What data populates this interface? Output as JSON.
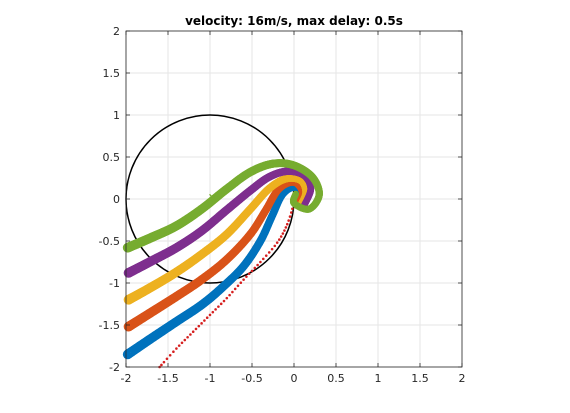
{
  "chart_data": {
    "type": "scatter",
    "title": "velocity: 16m/s, max delay: 0.5s",
    "xlabel": "",
    "ylabel": "",
    "xlim": [
      -2,
      2
    ],
    "ylim": [
      -2,
      2
    ],
    "xticks": [
      -2,
      -1.5,
      -1,
      -0.5,
      0,
      0.5,
      1,
      1.5,
      2
    ],
    "yticks": [
      -2,
      -1.5,
      -1,
      -0.5,
      0,
      0.5,
      1,
      1.5,
      2
    ],
    "xtick_labels": [
      "-2",
      "-1.5",
      "-1",
      "-0.5",
      "0",
      "0.5",
      "1",
      "1.5",
      "2"
    ],
    "ytick_labels": [
      "-2",
      "-1.5",
      "-1",
      "-0.5",
      "0",
      "0.5",
      "1",
      "1.5",
      "2"
    ],
    "grid": true,
    "circle": {
      "center": [
        -1,
        0
      ],
      "radius": 1,
      "color": "#000000"
    },
    "series": [
      {
        "name": "red-dots",
        "color": "#d62020",
        "marker": "dot",
        "points": [
          [
            -1.6,
            -2.0
          ],
          [
            -1.4,
            -1.78
          ],
          [
            -1.2,
            -1.58
          ],
          [
            -1.0,
            -1.38
          ],
          [
            -0.8,
            -1.18
          ],
          [
            -0.6,
            -0.96
          ],
          [
            -0.4,
            -0.75
          ],
          [
            -0.2,
            -0.52
          ],
          [
            -0.08,
            -0.3
          ],
          [
            0.0,
            -0.05
          ]
        ]
      },
      {
        "name": "blue",
        "color": "#0072bd",
        "marker": "circle",
        "points": [
          [
            -1.98,
            -1.85
          ],
          [
            -1.7,
            -1.66
          ],
          [
            -1.4,
            -1.46
          ],
          [
            -1.1,
            -1.26
          ],
          [
            -0.85,
            -1.05
          ],
          [
            -0.6,
            -0.8
          ],
          [
            -0.4,
            -0.5
          ],
          [
            -0.26,
            -0.2
          ],
          [
            -0.14,
            0.05
          ],
          [
            0.0,
            0.14
          ],
          [
            0.08,
            0.04
          ],
          [
            0.04,
            -0.06
          ]
        ]
      },
      {
        "name": "orange",
        "color": "#d95319",
        "marker": "circle",
        "points": [
          [
            -1.97,
            -1.52
          ],
          [
            -1.7,
            -1.35
          ],
          [
            -1.4,
            -1.16
          ],
          [
            -1.1,
            -0.96
          ],
          [
            -0.8,
            -0.72
          ],
          [
            -0.52,
            -0.42
          ],
          [
            -0.34,
            -0.14
          ],
          [
            -0.18,
            0.12
          ],
          [
            0.0,
            0.2
          ],
          [
            0.1,
            0.08
          ],
          [
            0.05,
            -0.06
          ]
        ]
      },
      {
        "name": "yellow",
        "color": "#edb120",
        "marker": "circle",
        "points": [
          [
            -1.97,
            -1.2
          ],
          [
            -1.7,
            -1.05
          ],
          [
            -1.4,
            -0.87
          ],
          [
            -1.1,
            -0.66
          ],
          [
            -0.8,
            -0.42
          ],
          [
            -0.52,
            -0.12
          ],
          [
            -0.3,
            0.12
          ],
          [
            -0.1,
            0.24
          ],
          [
            0.08,
            0.22
          ],
          [
            0.14,
            0.08
          ],
          [
            0.08,
            -0.07
          ]
        ]
      },
      {
        "name": "purple",
        "color": "#7e2f8e",
        "marker": "circle",
        "points": [
          [
            -1.97,
            -0.88
          ],
          [
            -1.7,
            -0.74
          ],
          [
            -1.4,
            -0.58
          ],
          [
            -1.1,
            -0.38
          ],
          [
            -0.8,
            -0.13
          ],
          [
            -0.52,
            0.1
          ],
          [
            -0.3,
            0.26
          ],
          [
            -0.08,
            0.33
          ],
          [
            0.12,
            0.28
          ],
          [
            0.2,
            0.12
          ],
          [
            0.12,
            -0.08
          ]
        ]
      },
      {
        "name": "green",
        "color": "#77ac30",
        "marker": "circle",
        "points": [
          [
            -1.98,
            -0.58
          ],
          [
            -1.7,
            -0.46
          ],
          [
            -1.4,
            -0.32
          ],
          [
            -1.1,
            -0.12
          ],
          [
            -0.8,
            0.12
          ],
          [
            -0.52,
            0.32
          ],
          [
            -0.25,
            0.42
          ],
          [
            0.0,
            0.4
          ],
          [
            0.22,
            0.26
          ],
          [
            0.3,
            0.05
          ],
          [
            0.18,
            -0.12
          ],
          [
            0.0,
            -0.05
          ],
          [
            0.02,
            0.06
          ]
        ]
      }
    ]
  }
}
